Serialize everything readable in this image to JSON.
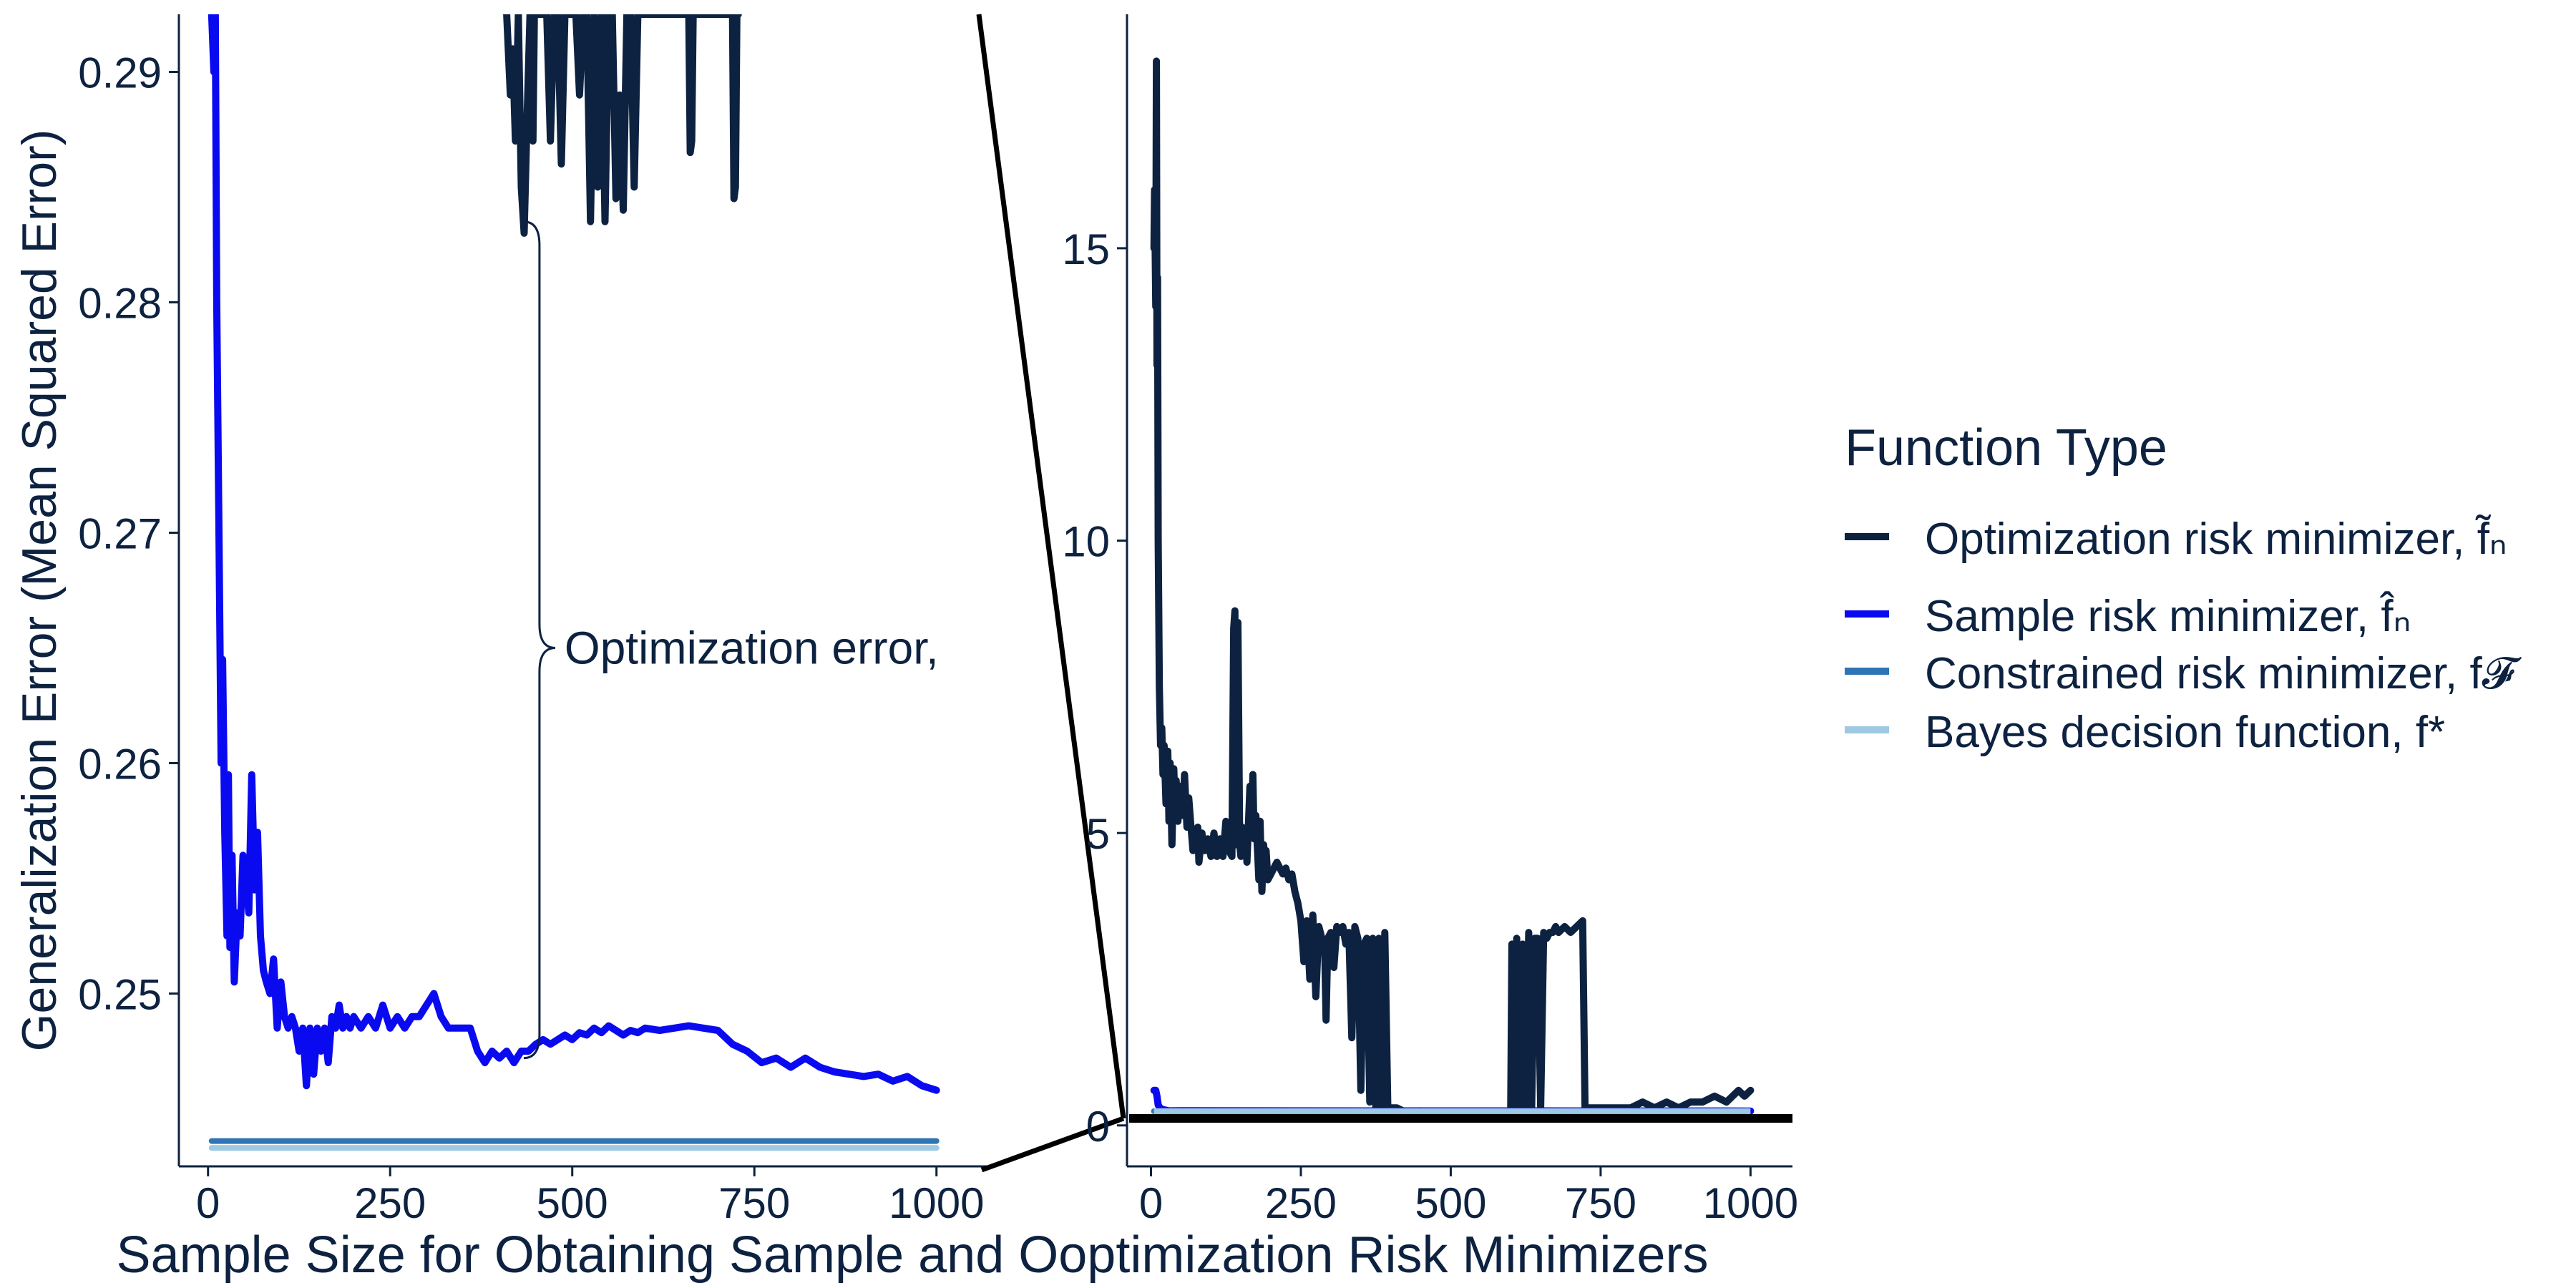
{
  "chart_data": [
    {
      "type": "line",
      "panel": "zoomed",
      "xlabel": "Sample Size for Obtaining Sample and Ooptimization Risk Minimizers",
      "ylabel": "Generalization Error (Mean Squared Error)",
      "xlim": [
        -40,
        1070
      ],
      "ylim": [
        0.2425,
        0.2925
      ],
      "xticks": [
        0,
        250,
        500,
        750,
        1000
      ],
      "yticks": [
        0.25,
        0.26,
        0.27,
        0.28,
        0.29
      ],
      "annotation": {
        "text": "Optimization error,",
        "x": 490,
        "y": 0.265,
        "brace_x": 455,
        "brace_from": 0.2835,
        "brace_to": 0.2472
      },
      "series": [
        {
          "name": "Optimization risk minimizer, f̃ₙ",
          "color": "#0d2240",
          "x": [
            410,
            415,
            418,
            422,
            426,
            430,
            434,
            438,
            442,
            446,
            448,
            452,
            456,
            460,
            465,
            470,
            475,
            480,
            485,
            490,
            495,
            500,
            505,
            510,
            515,
            520,
            525,
            530,
            535,
            540,
            545,
            550,
            555,
            560,
            565,
            570,
            575,
            580,
            585,
            590,
            660,
            662,
            664,
            666,
            720,
            722,
            724,
            726,
            728
          ],
          "y": [
            0.2925,
            0.289,
            0.291,
            0.287,
            0.2925,
            0.285,
            0.283,
            0.288,
            0.2925,
            0.287,
            0.2925,
            0.2925,
            0.2925,
            0.2925,
            0.2925,
            0.287,
            0.2925,
            0.2925,
            0.286,
            0.2925,
            0.2925,
            0.2925,
            0.2925,
            0.289,
            0.2925,
            0.2925,
            0.2835,
            0.2925,
            0.285,
            0.2925,
            0.2835,
            0.2925,
            0.2925,
            0.2845,
            0.289,
            0.284,
            0.2925,
            0.2925,
            0.285,
            0.2925,
            0.2925,
            0.2865,
            0.287,
            0.2925,
            0.2925,
            0.2845,
            0.285,
            0.2925,
            0.2925
          ]
        },
        {
          "name": "Sample risk minimizer, f̂ₙ",
          "color": "#0a0af0",
          "x": [
            5,
            8,
            10,
            12,
            15,
            18,
            20,
            23,
            26,
            28,
            30,
            33,
            36,
            40,
            44,
            48,
            52,
            56,
            60,
            64,
            68,
            72,
            76,
            80,
            85,
            90,
            95,
            100,
            105,
            110,
            115,
            120,
            125,
            130,
            135,
            140,
            145,
            150,
            155,
            160,
            165,
            170,
            175,
            180,
            185,
            190,
            195,
            200,
            210,
            220,
            230,
            240,
            250,
            260,
            270,
            280,
            290,
            300,
            310,
            315,
            320,
            330,
            340,
            350,
            360,
            370,
            380,
            390,
            400,
            410,
            420,
            430,
            440,
            450,
            460,
            470,
            480,
            490,
            500,
            510,
            520,
            530,
            540,
            550,
            560,
            570,
            580,
            590,
            600,
            620,
            640,
            660,
            680,
            700,
            720,
            740,
            760,
            780,
            800,
            820,
            840,
            860,
            880,
            900,
            920,
            940,
            960,
            980,
            1000
          ],
          "y": [
            0.2925,
            0.29,
            0.2925,
            0.28,
            0.27,
            0.26,
            0.2645,
            0.257,
            0.2525,
            0.2595,
            0.252,
            0.256,
            0.2505,
            0.2535,
            0.2525,
            0.256,
            0.255,
            0.2535,
            0.2595,
            0.2545,
            0.257,
            0.2525,
            0.251,
            0.2505,
            0.25,
            0.2515,
            0.2485,
            0.2505,
            0.249,
            0.2485,
            0.249,
            0.2485,
            0.2475,
            0.2485,
            0.246,
            0.2485,
            0.2465,
            0.2485,
            0.2475,
            0.2485,
            0.247,
            0.249,
            0.2485,
            0.2495,
            0.2485,
            0.249,
            0.2485,
            0.249,
            0.2485,
            0.249,
            0.2485,
            0.2495,
            0.2485,
            0.249,
            0.2485,
            0.249,
            0.249,
            0.2495,
            0.25,
            0.2495,
            0.249,
            0.2485,
            0.2485,
            0.2485,
            0.2485,
            0.2475,
            0.247,
            0.2475,
            0.2472,
            0.2475,
            0.247,
            0.2475,
            0.2475,
            0.2478,
            0.248,
            0.2478,
            0.248,
            0.2482,
            0.248,
            0.2483,
            0.2482,
            0.2485,
            0.2483,
            0.2486,
            0.2484,
            0.2482,
            0.2484,
            0.2483,
            0.2485,
            0.2484,
            0.2485,
            0.2486,
            0.2485,
            0.2484,
            0.2478,
            0.2475,
            0.247,
            0.2472,
            0.2468,
            0.2472,
            0.2468,
            0.2466,
            0.2465,
            0.2464,
            0.2465,
            0.2462,
            0.2464,
            0.246,
            0.2458
          ]
        },
        {
          "name": "Constrained risk minimizer, f𝓕",
          "color": "#2f74b5",
          "x": [
            5,
            1000
          ],
          "y": [
            0.2436,
            0.2436
          ]
        },
        {
          "name": "Bayes decision function, f*",
          "color": "#9ec9e2",
          "x": [
            5,
            1000
          ],
          "y": [
            0.2433,
            0.2433
          ]
        }
      ]
    },
    {
      "type": "line",
      "panel": "full",
      "xlim": [
        -40,
        1070
      ],
      "ylim": [
        -0.7,
        19
      ],
      "xticks": [
        0,
        250,
        500,
        750,
        1000
      ],
      "yticks": [
        0,
        5,
        10,
        15
      ],
      "series": [
        {
          "name": "Optimization risk minimizer, f̃ₙ",
          "color": "#0d2240",
          "x": [
            5,
            6,
            8,
            9,
            10,
            11,
            12,
            14,
            16,
            18,
            20,
            22,
            25,
            28,
            30,
            32,
            35,
            38,
            40,
            42,
            45,
            48,
            50,
            53,
            56,
            60,
            63,
            66,
            70,
            72,
            75,
            78,
            80,
            85,
            90,
            95,
            100,
            105,
            110,
            115,
            120,
            125,
            130,
            135,
            138,
            140,
            142,
            145,
            148,
            150,
            152,
            155,
            158,
            160,
            165,
            168,
            170,
            172,
            175,
            180,
            182,
            185,
            188,
            190,
            192,
            195,
            200,
            205,
            210,
            215,
            220,
            225,
            230,
            235,
            240,
            245,
            250,
            255,
            260,
            265,
            270,
            275,
            280,
            285,
            290,
            292,
            295,
            300,
            305,
            310,
            315,
            320,
            325,
            330,
            335,
            340,
            345,
            350,
            355,
            360,
            365,
            370,
            375,
            380,
            385,
            390,
            395,
            400,
            410,
            430,
            450,
            470,
            500,
            530,
            560,
            590,
            600,
            602,
            605,
            610,
            615,
            620,
            625,
            630,
            635,
            640,
            645,
            650,
            655,
            660,
            665,
            670,
            675,
            680,
            690,
            700,
            710,
            720,
            724,
            726,
            730,
            760,
            790,
            800,
            820,
            840,
            860,
            880,
            900,
            920,
            940,
            960,
            980,
            990,
            1000
          ],
          "y": [
            15,
            16,
            14,
            18.2,
            13,
            14.5,
            10,
            7.5,
            6.5,
            6.8,
            6,
            6.5,
            5.5,
            6.4,
            5.2,
            6.2,
            4.8,
            6.1,
            5.5,
            5.9,
            5.2,
            5.8,
            5.5,
            5.3,
            6,
            5.1,
            5.6,
            5.2,
            4.7,
            5,
            4.8,
            5.1,
            4.5,
            5,
            4.7,
            4.9,
            4.6,
            5,
            4.6,
            4.9,
            4.6,
            5.2,
            4.7,
            4.6,
            8.5,
            8.8,
            4.8,
            8.6,
            4.8,
            4.6,
            5.1,
            4.7,
            5,
            4.5,
            5.8,
            5.2,
            6,
            4.9,
            5.3,
            4.2,
            5.2,
            4,
            4.8,
            4.4,
            4.7,
            4.2,
            4.3,
            4.4,
            4.5,
            4.4,
            4.3,
            4.4,
            4.2,
            4.3,
            4,
            3.8,
            3.5,
            2.8,
            3.5,
            2.5,
            3.6,
            2.2,
            3.4,
            3.2,
            2.9,
            1.8,
            3.2,
            3.3,
            2.7,
            3.4,
            3.3,
            3.4,
            3.1,
            3.3,
            1.5,
            3.4,
            3.2,
            0.6,
            3.1,
            3.2,
            0.4,
            3.2,
            0.3,
            3.2,
            0.3,
            3.3,
            0.3,
            0.3,
            0.3,
            0.2,
            0.25,
            0.2,
            0.25,
            0.2,
            0.25,
            0.2,
            0.2,
            3.1,
            0.3,
            3.2,
            0.3,
            3.1,
            0.3,
            3.3,
            0.3,
            3.2,
            3.2,
            0.3,
            3.3,
            3.2,
            3.3,
            3.3,
            3.4,
            3.3,
            3.4,
            3.3,
            3.4,
            3.5,
            0.3,
            0.2,
            0.3,
            0.3,
            0.3,
            0.3,
            0.4,
            0.3,
            0.4,
            0.3,
            0.4,
            0.4,
            0.5,
            0.4,
            0.6,
            0.5,
            0.6
          ]
        },
        {
          "name": "Sample risk minimizer, f̂ₙ",
          "color": "#0a0af0",
          "x": [
            5,
            8,
            10,
            12,
            15,
            20,
            30,
            60,
            200,
            500,
            800,
            1000
          ],
          "y": [
            0.6,
            0.6,
            0.5,
            0.35,
            0.3,
            0.27,
            0.25,
            0.252,
            0.249,
            0.248,
            0.247,
            0.246
          ]
        },
        {
          "name": "Constrained risk minimizer, f𝓕",
          "color": "#2f74b5",
          "x": [
            5,
            1000
          ],
          "y": [
            0.2436,
            0.2436
          ]
        },
        {
          "name": "Bayes decision function, f*",
          "color": "#9ec9e2",
          "x": [
            5,
            1000
          ],
          "y": [
            0.2433,
            0.2433
          ]
        }
      ]
    }
  ],
  "legend": {
    "title": "Function Type",
    "placement": "right",
    "items": [
      {
        "label": "Optimization risk minimizer, f̃ₙ",
        "color": "#0d2240"
      },
      {
        "label": "Sample risk minimizer, f̂ₙ",
        "color": "#0a0af0"
      },
      {
        "label": "Constrained risk minimizer, f𝓕",
        "color": "#2f74b5"
      },
      {
        "label": "Bayes decision function, f*",
        "color": "#9ec9e2"
      }
    ]
  },
  "zoom_highlight_color": "#000000"
}
